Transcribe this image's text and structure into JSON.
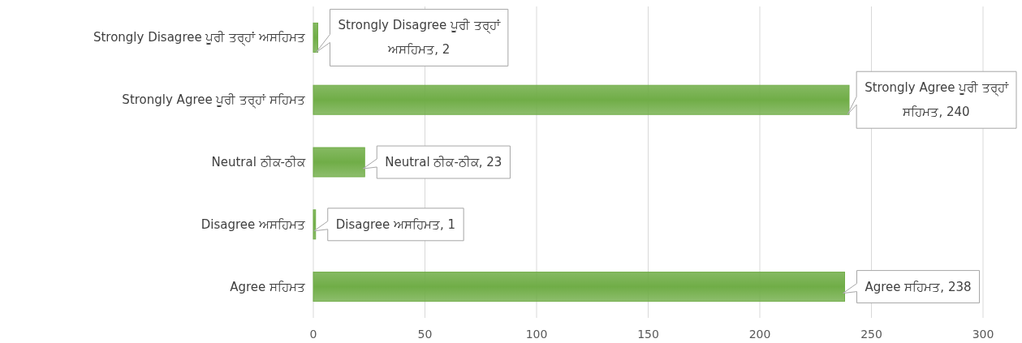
{
  "chart_data": {
    "type": "bar",
    "orientation": "horizontal",
    "categories": [
      "Strongly Disagree ਪੂਰੀ ਤਰ੍ਹਾਂ ਅਸਹਿਮਤ",
      "Strongly Agree ਪੂਰੀ ਤਰ੍ਹਾਂ ਸਹਿਮਤ",
      "Neutral ਠੀਕ-ਠੀਕ",
      "Disagree ਅਸਹਿਮਤ",
      "Agree ਸਹਿਮਤ"
    ],
    "values": [
      2,
      240,
      23,
      1,
      238
    ],
    "value_labels": [
      "Strongly Disagree ਪੂਰੀ ਤਰ੍ਹਾਂ ਅਸਹਿਮਤ, 2",
      "Strongly Agree ਪੂਰੀ ਤਰ੍ਹਾਂ ਸਹਿਮਤ, 240",
      "Neutral ਠੀਕ-ਠੀਕ, 23",
      "Disagree ਅਸਹਿਮਤ, 1",
      "Agree ਸਹਿਮਤ, 238"
    ],
    "color": "#70ad47",
    "xlim": [
      0,
      300
    ],
    "xticks": [
      0,
      50,
      100,
      150,
      200,
      250,
      300
    ],
    "grid": "x"
  }
}
